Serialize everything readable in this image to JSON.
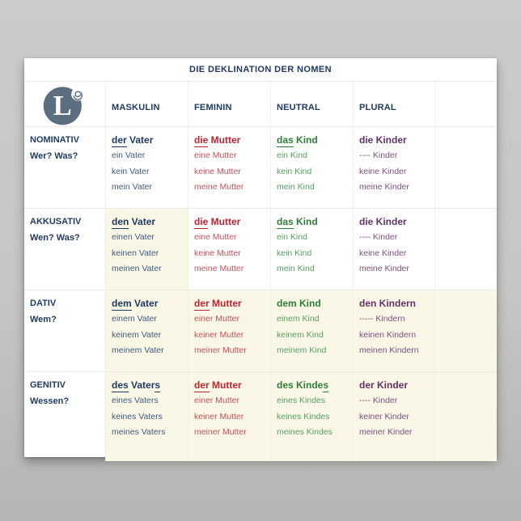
{
  "poster": {
    "title": "DIE DEKLINATION DER NOMEN",
    "logo": {
      "letter": "L",
      "icon": "letter-l-spiral-logo"
    },
    "colors": {
      "title": "#203864",
      "header": "#1e3c62",
      "cream_cell": "#faf7e7",
      "logo_slate": "#5b6f80",
      "maskulin": {
        "head": "#1e3c62",
        "line": "#3d5a7d"
      },
      "feminin": {
        "head": "#bf2433",
        "line": "#c8505a"
      },
      "neutral": {
        "head": "#2e7d36",
        "line": "#55a061"
      },
      "plural": {
        "head": "#633165",
        "line": "#7d4f80"
      }
    },
    "table": {
      "column_headers": [
        "MASKULIN",
        "FEMININ",
        "NEUTRAL",
        "PLURAL"
      ],
      "rows": [
        {
          "case": "NOMINATIV",
          "question": "Wer? Was?",
          "filler_cream": false,
          "cells": [
            {
              "gender": "maskulin",
              "cream": false,
              "head": [
                {
                  "t": "der",
                  "u": true
                },
                {
                  "t": " Vater",
                  "u": false
                }
              ],
              "lines": [
                "ein Vater",
                "kein Vater",
                "mein Vater"
              ]
            },
            {
              "gender": "feminin",
              "cream": false,
              "head": [
                {
                  "t": "die",
                  "u": true
                },
                {
                  "t": " Mutter",
                  "u": false
                }
              ],
              "lines": [
                "eine Mutter",
                "keine Mutter",
                "meine Mutter"
              ]
            },
            {
              "gender": "neutral",
              "cream": false,
              "head": [
                {
                  "t": "das",
                  "u": true
                },
                {
                  "t": " Kind",
                  "u": false
                }
              ],
              "lines": [
                "ein Kind",
                "kein Kind",
                "mein Kind"
              ]
            },
            {
              "gender": "plural",
              "cream": false,
              "head": [
                {
                  "t": "die Kinder",
                  "u": false
                }
              ],
              "lines": [
                "---- Kinder",
                "keine Kinder",
                "meine Kinder"
              ]
            }
          ]
        },
        {
          "case": "AKKUSATIV",
          "question": "Wen? Was?",
          "filler_cream": false,
          "cells": [
            {
              "gender": "maskulin",
              "cream": true,
              "head": [
                {
                  "t": "den",
                  "u": true
                },
                {
                  "t": " Vater",
                  "u": false
                }
              ],
              "lines": [
                "einen Vater",
                "keinen Vater",
                "meinen Vater"
              ]
            },
            {
              "gender": "feminin",
              "cream": false,
              "head": [
                {
                  "t": "die",
                  "u": true
                },
                {
                  "t": " Mutter",
                  "u": false
                }
              ],
              "lines": [
                "eine Mutter",
                "keine Mutter",
                "meine Mutter"
              ]
            },
            {
              "gender": "neutral",
              "cream": false,
              "head": [
                {
                  "t": "das",
                  "u": true
                },
                {
                  "t": " Kind",
                  "u": false
                }
              ],
              "lines": [
                "ein Kind",
                "kein Kind",
                "mein Kind"
              ]
            },
            {
              "gender": "plural",
              "cream": false,
              "head": [
                {
                  "t": "die Kinder",
                  "u": false
                }
              ],
              "lines": [
                "---- Kinder",
                "keine Kinder",
                "meine Kinder"
              ]
            }
          ]
        },
        {
          "case": "DATIV",
          "question": "Wem?",
          "filler_cream": true,
          "cells": [
            {
              "gender": "maskulin",
              "cream": true,
              "head": [
                {
                  "t": "dem",
                  "u": true
                },
                {
                  "t": " Vater",
                  "u": false
                }
              ],
              "lines": [
                "einem Vater",
                "keinem Vater",
                "meinem Vater"
              ]
            },
            {
              "gender": "feminin",
              "cream": true,
              "head": [
                {
                  "t": "der",
                  "u": true
                },
                {
                  "t": " Mutter",
                  "u": false
                }
              ],
              "lines": [
                "einer Mutter",
                "keiner Mutter",
                "meiner Mutter"
              ]
            },
            {
              "gender": "neutral",
              "cream": true,
              "head": [
                {
                  "t": "dem Kind",
                  "u": false
                }
              ],
              "lines": [
                "einem Kind",
                "keinem Kind",
                "meinem Kind"
              ]
            },
            {
              "gender": "plural",
              "cream": true,
              "head": [
                {
                  "t": "den Kindern",
                  "u": false
                }
              ],
              "lines": [
                "----- Kindern",
                "keinen Kindern",
                "meinen Kindern"
              ]
            }
          ]
        },
        {
          "case": "GENITIV",
          "question": "Wessen?",
          "filler_cream": true,
          "cells": [
            {
              "gender": "maskulin",
              "cream": true,
              "head": [
                {
                  "t": "des",
                  "u": true
                },
                {
                  "t": " Vater",
                  "u": false
                },
                {
                  "t": "s",
                  "u": true
                }
              ],
              "lines": [
                "eines Vaters",
                "keines Vaters",
                "meines Vaters"
              ]
            },
            {
              "gender": "feminin",
              "cream": true,
              "head": [
                {
                  "t": "der",
                  "u": true
                },
                {
                  "t": " Mutter",
                  "u": false
                }
              ],
              "lines": [
                "einer Mutter",
                "keiner Mutter",
                "meiner Mutter"
              ]
            },
            {
              "gender": "neutral",
              "cream": true,
              "head": [
                {
                  "t": "des Kinde",
                  "u": false
                },
                {
                  "t": "s",
                  "u": true
                }
              ],
              "lines": [
                "eines Kindes",
                "keines Kindes",
                "meines Kindes"
              ]
            },
            {
              "gender": "plural",
              "cream": true,
              "head": [
                {
                  "t": "der Kinder",
                  "u": false
                }
              ],
              "lines": [
                "---- Kinder",
                "keiner Kinder",
                "meiner Kinder"
              ]
            }
          ]
        }
      ]
    }
  }
}
